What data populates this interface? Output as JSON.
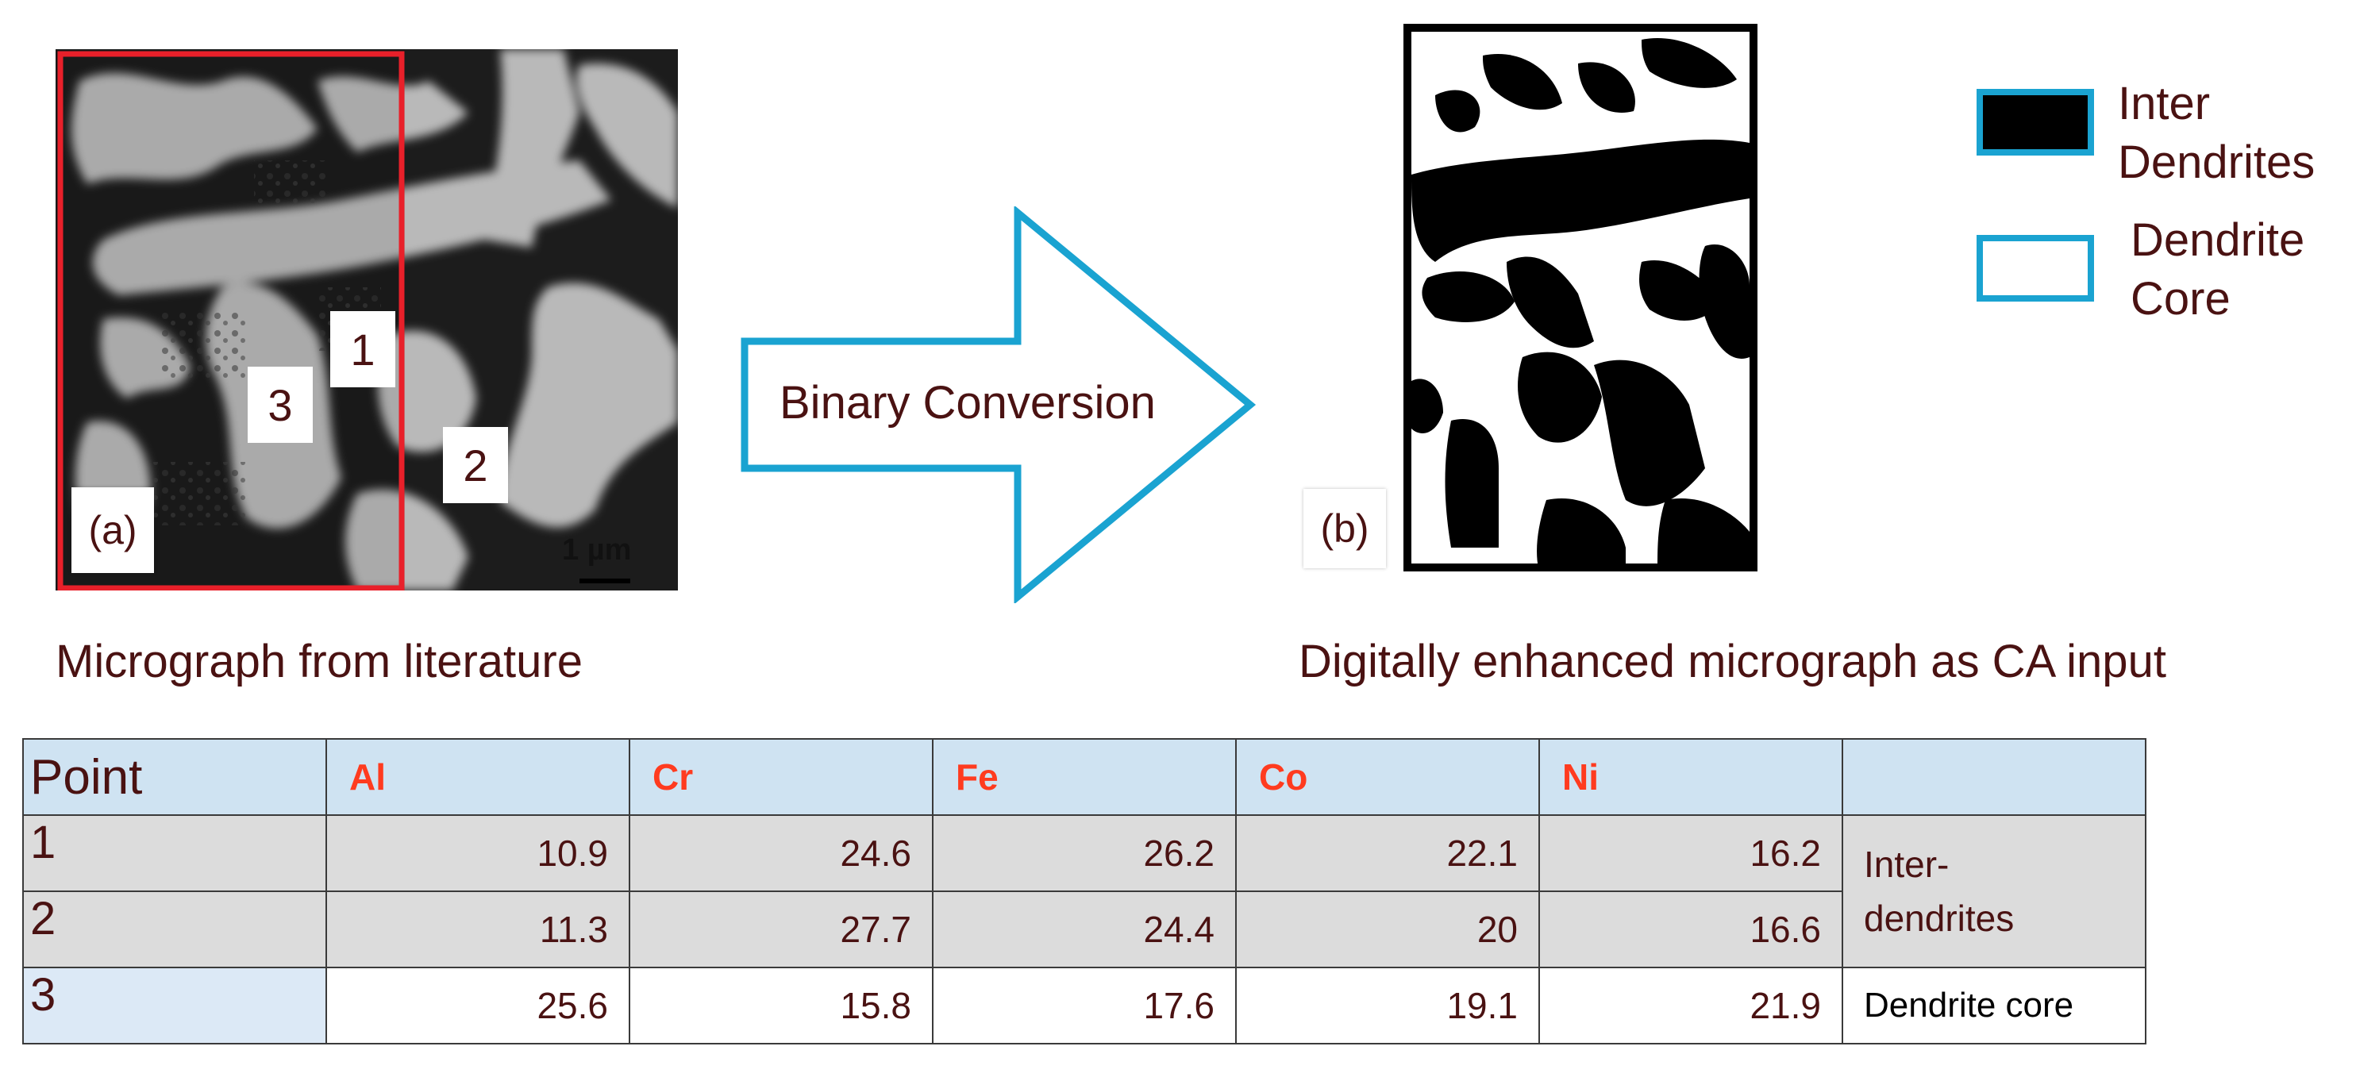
{
  "panel_a": {
    "label": "(a)",
    "points": [
      "1",
      "3",
      "2"
    ],
    "scale_bar": "1 µm",
    "caption": "Micrograph from literature"
  },
  "arrow": {
    "label": "Binary Conversion",
    "color": "#1aa3d1"
  },
  "panel_b": {
    "label": "(b)",
    "caption": "Digitally enhanced micrograph as CA input"
  },
  "legend": {
    "items": [
      {
        "label_line1": "Inter",
        "label_line2": "Dendrites",
        "fill": "#000000",
        "border": "#1aa3d1"
      },
      {
        "label_line1": "Dendrite",
        "label_line2": "Core",
        "fill": "#ffffff",
        "border": "#1aa3d1"
      }
    ]
  },
  "table": {
    "headers": [
      "Point",
      "Al",
      "Cr",
      "Fe",
      "Co",
      "Ni",
      ""
    ],
    "rows": [
      {
        "point": "1",
        "values": [
          "10.9",
          "24.6",
          "26.2",
          "22.1",
          "16.2"
        ]
      },
      {
        "point": "2",
        "values": [
          "11.3",
          "27.7",
          "24.4",
          "20",
          "16.6"
        ]
      },
      {
        "point": "3",
        "values": [
          "25.6",
          "15.8",
          "17.6",
          "19.1",
          "21.9"
        ]
      }
    ],
    "group_note_line1": "Inter-",
    "group_note_line2": "dendrites",
    "row3_note": "Dendrite core",
    "colors": {
      "header_bg": "#cfe3f2",
      "shaded_bg": "#dcdcdc",
      "element_text": "#ff3b1f"
    }
  }
}
